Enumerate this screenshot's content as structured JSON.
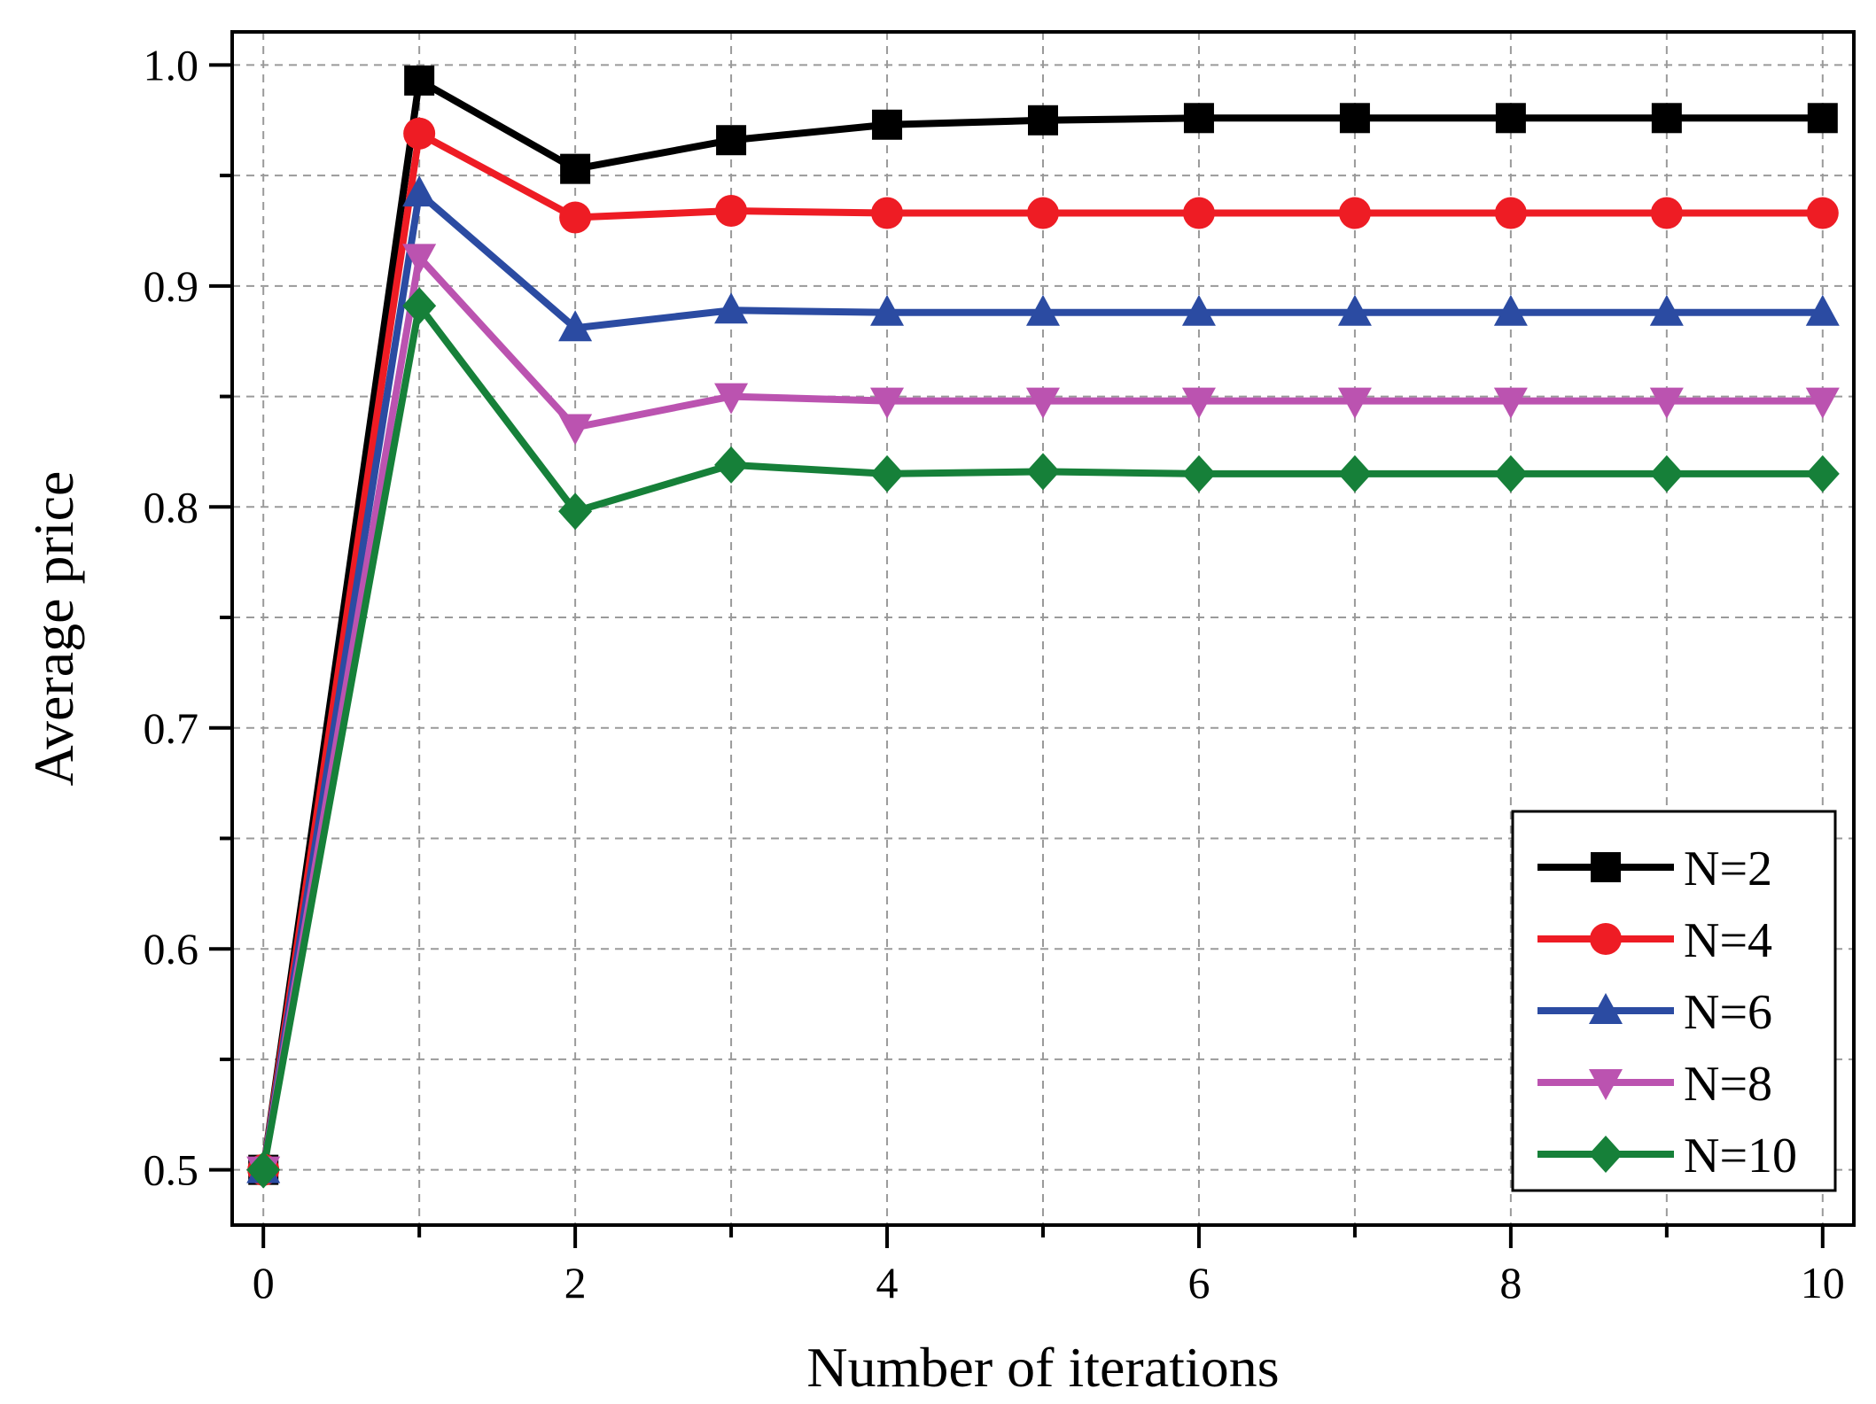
{
  "chart_data": {
    "type": "line",
    "title": "",
    "xlabel": "Number of iterations",
    "ylabel": "Average price",
    "xlim": [
      -0.2,
      10.2
    ],
    "ylim": [
      0.475,
      1.015
    ],
    "x": [
      0,
      1,
      2,
      3,
      4,
      5,
      6,
      7,
      8,
      9,
      10
    ],
    "xticks": [
      0,
      2,
      4,
      6,
      8,
      10
    ],
    "xtick_labels": [
      "0",
      "2",
      "4",
      "6",
      "8",
      "10"
    ],
    "xminor": [
      1,
      3,
      5,
      7,
      9
    ],
    "yticks": [
      0.5,
      0.6,
      0.7,
      0.8,
      0.9,
      1.0
    ],
    "ytick_labels": [
      "0.5",
      "0.6",
      "0.7",
      "0.8",
      "0.9",
      "1.0"
    ],
    "yminor": [
      0.55,
      0.65,
      0.75,
      0.85,
      0.95
    ],
    "grid": true,
    "legend_position": "bottom-right",
    "series": [
      {
        "name": "N=2",
        "label": "N=2",
        "color": "#000000",
        "marker": "square",
        "values": [
          0.5,
          0.993,
          0.953,
          0.966,
          0.973,
          0.975,
          0.976,
          0.976,
          0.976,
          0.976,
          0.976
        ]
      },
      {
        "name": "N=4",
        "label": "N=4",
        "color": "#ee1c24",
        "marker": "circle",
        "values": [
          0.5,
          0.969,
          0.931,
          0.934,
          0.933,
          0.933,
          0.933,
          0.933,
          0.933,
          0.933,
          0.933
        ]
      },
      {
        "name": "N=6",
        "label": "N=6",
        "color": "#2b4ba2",
        "marker": "triangle-up",
        "values": [
          0.5,
          0.942,
          0.881,
          0.889,
          0.888,
          0.888,
          0.888,
          0.888,
          0.888,
          0.888,
          0.888
        ]
      },
      {
        "name": "N=8",
        "label": "N=8",
        "color": "#bb53b0",
        "marker": "triangle-down",
        "values": [
          0.5,
          0.913,
          0.836,
          0.85,
          0.848,
          0.848,
          0.848,
          0.848,
          0.848,
          0.848,
          0.848
        ]
      },
      {
        "name": "N=10",
        "label": "N=10",
        "color": "#168039",
        "marker": "diamond",
        "values": [
          0.5,
          0.891,
          0.798,
          0.819,
          0.815,
          0.816,
          0.815,
          0.815,
          0.815,
          0.815,
          0.815
        ]
      }
    ]
  }
}
